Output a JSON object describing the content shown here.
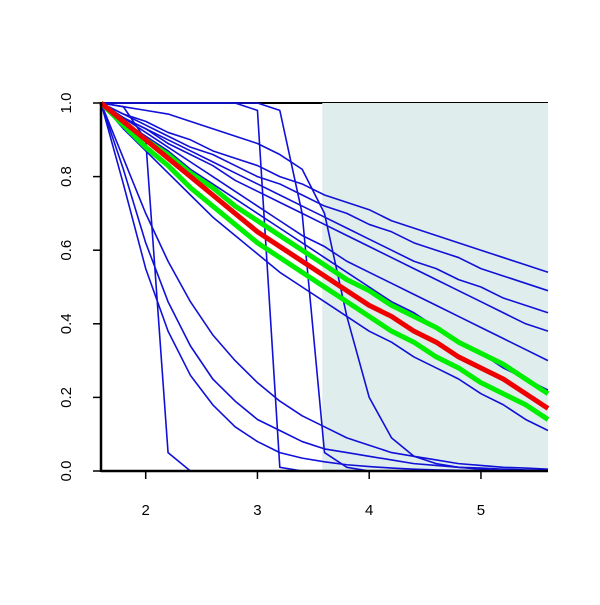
{
  "chart_data": {
    "type": "line",
    "x": [
      1.6,
      1.8,
      2.0,
      2.2,
      2.4,
      2.6,
      2.8,
      3.0,
      3.2,
      3.4,
      3.6,
      3.8,
      4.0,
      4.2,
      4.4,
      4.6,
      4.8,
      5.0,
      5.2,
      5.4,
      5.6
    ],
    "xlim": [
      1.6,
      5.6
    ],
    "ylim": [
      0,
      1
    ],
    "xticks": [
      2,
      3,
      4,
      5
    ],
    "yticks": [
      {
        "value": 0,
        "label": "0.0"
      },
      0.2,
      0.4,
      0.6,
      0.8,
      {
        "value": 1,
        "label": "1.0"
      }
    ],
    "shade": {
      "xlim": [
        3.58,
        5.6
      ],
      "color": "#e0eded"
    },
    "series": [
      {
        "color": "#1010d8",
        "line_width": 1.6,
        "values": [
          1,
          0.97,
          0.95,
          0.92,
          0.9,
          0.87,
          0.85,
          0.83,
          0.8,
          0.78,
          0.75,
          0.73,
          0.71,
          0.68,
          0.66,
          0.64,
          0.62,
          0.6,
          0.58,
          0.56,
          0.54
        ]
      },
      {
        "color": "#1010d8",
        "line_width": 1.6,
        "values": [
          1,
          0.97,
          0.94,
          0.91,
          0.88,
          0.86,
          0.83,
          0.8,
          0.78,
          0.75,
          0.72,
          0.7,
          0.67,
          0.65,
          0.62,
          0.6,
          0.58,
          0.55,
          0.53,
          0.51,
          0.49
        ]
      },
      {
        "color": "#1010d8",
        "line_width": 1.6,
        "values": [
          1,
          0.96,
          0.93,
          0.9,
          0.87,
          0.84,
          0.81,
          0.78,
          0.75,
          0.72,
          0.69,
          0.66,
          0.63,
          0.6,
          0.57,
          0.55,
          0.52,
          0.5,
          0.47,
          0.45,
          0.43
        ]
      },
      {
        "color": "#1010d8",
        "line_width": 1.6,
        "values": [
          1,
          0.96,
          0.93,
          0.89,
          0.86,
          0.83,
          0.79,
          0.76,
          0.73,
          0.7,
          0.67,
          0.64,
          0.61,
          0.58,
          0.55,
          0.52,
          0.49,
          0.46,
          0.43,
          0.4,
          0.38
        ]
      },
      {
        "color": "#1010d8",
        "line_width": 1.6,
        "values": [
          1,
          0.96,
          0.92,
          0.88,
          0.84,
          0.8,
          0.76,
          0.72,
          0.68,
          0.64,
          0.61,
          0.57,
          0.54,
          0.51,
          0.48,
          0.45,
          0.42,
          0.39,
          0.36,
          0.33,
          0.3
        ]
      },
      {
        "color": "#1010d8",
        "line_width": 1.6,
        "values": [
          1,
          0.95,
          0.91,
          0.87,
          0.82,
          0.78,
          0.74,
          0.7,
          0.66,
          0.62,
          0.58,
          0.54,
          0.5,
          0.46,
          0.43,
          0.39,
          0.35,
          0.32,
          0.28,
          0.25,
          0.22
        ]
      },
      {
        "color": "#1010d8",
        "line_width": 1.6,
        "values": [
          1,
          0.93,
          0.87,
          0.81,
          0.75,
          0.69,
          0.64,
          0.59,
          0.54,
          0.5,
          0.46,
          0.42,
          0.38,
          0.35,
          0.31,
          0.28,
          0.25,
          0.21,
          0.18,
          0.14,
          0.11
        ]
      },
      {
        "color": "#1010d8",
        "line_width": 1.6,
        "values": [
          1,
          0.99,
          0.9,
          0.05,
          0,
          0,
          0,
          0,
          0,
          0,
          0,
          0,
          0,
          0,
          0,
          0,
          0,
          0,
          0,
          0,
          0
        ]
      },
      {
        "color": "#1010d8",
        "line_width": 1.6,
        "values": [
          1,
          1,
          1,
          1,
          1,
          1,
          1,
          0.98,
          0.01,
          0,
          0,
          0,
          0,
          0,
          0,
          0,
          0,
          0,
          0,
          0,
          0
        ]
      },
      {
        "color": "#1010d8",
        "line_width": 1.6,
        "values": [
          1,
          1,
          1,
          1,
          1,
          1,
          1,
          1,
          0.98,
          0.7,
          0.05,
          0.01,
          0,
          0,
          0,
          0,
          0,
          0,
          0,
          0,
          0
        ]
      },
      {
        "color": "#1010d8",
        "line_width": 1.6,
        "values": [
          1,
          0.99,
          0.98,
          0.97,
          0.95,
          0.93,
          0.91,
          0.89,
          0.86,
          0.82,
          0.7,
          0.42,
          0.2,
          0.09,
          0.04,
          0.02,
          0.01,
          0.005,
          0,
          0,
          0
        ]
      },
      {
        "color": "#1010d8",
        "line_width": 1.6,
        "values": [
          1,
          0.78,
          0.55,
          0.38,
          0.26,
          0.18,
          0.12,
          0.08,
          0.05,
          0.035,
          0.025,
          0.017,
          0.012,
          0.008,
          0.005,
          0.003,
          0.002,
          0.001,
          0,
          0,
          0
        ]
      },
      {
        "color": "#1010d8",
        "line_width": 1.6,
        "values": [
          1,
          0.82,
          0.62,
          0.46,
          0.34,
          0.25,
          0.19,
          0.14,
          0.11,
          0.08,
          0.06,
          0.05,
          0.04,
          0.03,
          0.02,
          0.015,
          0.01,
          0.008,
          0.005,
          0.003,
          0.002
        ]
      },
      {
        "color": "#1010d8",
        "line_width": 1.6,
        "values": [
          1,
          0.85,
          0.7,
          0.57,
          0.46,
          0.37,
          0.3,
          0.24,
          0.19,
          0.15,
          0.12,
          0.09,
          0.07,
          0.05,
          0.04,
          0.03,
          0.02,
          0.015,
          0.01,
          0.008,
          0.005
        ]
      },
      {
        "color": "#00ee00",
        "line_width": 5,
        "values": [
          1,
          0.95,
          0.9,
          0.86,
          0.81,
          0.77,
          0.72,
          0.68,
          0.64,
          0.6,
          0.56,
          0.52,
          0.49,
          0.45,
          0.42,
          0.39,
          0.35,
          0.32,
          0.29,
          0.25,
          0.21
        ]
      },
      {
        "color": "#00ee00",
        "line_width": 5,
        "values": [
          1,
          0.94,
          0.88,
          0.83,
          0.77,
          0.72,
          0.67,
          0.62,
          0.58,
          0.54,
          0.5,
          0.46,
          0.42,
          0.38,
          0.35,
          0.31,
          0.28,
          0.24,
          0.21,
          0.18,
          0.14
        ]
      },
      {
        "color": "#ee0000",
        "line_width": 5,
        "values": [
          1,
          0.95,
          0.9,
          0.85,
          0.8,
          0.75,
          0.7,
          0.65,
          0.61,
          0.57,
          0.53,
          0.49,
          0.45,
          0.42,
          0.38,
          0.35,
          0.31,
          0.28,
          0.25,
          0.21,
          0.17
        ]
      }
    ]
  }
}
